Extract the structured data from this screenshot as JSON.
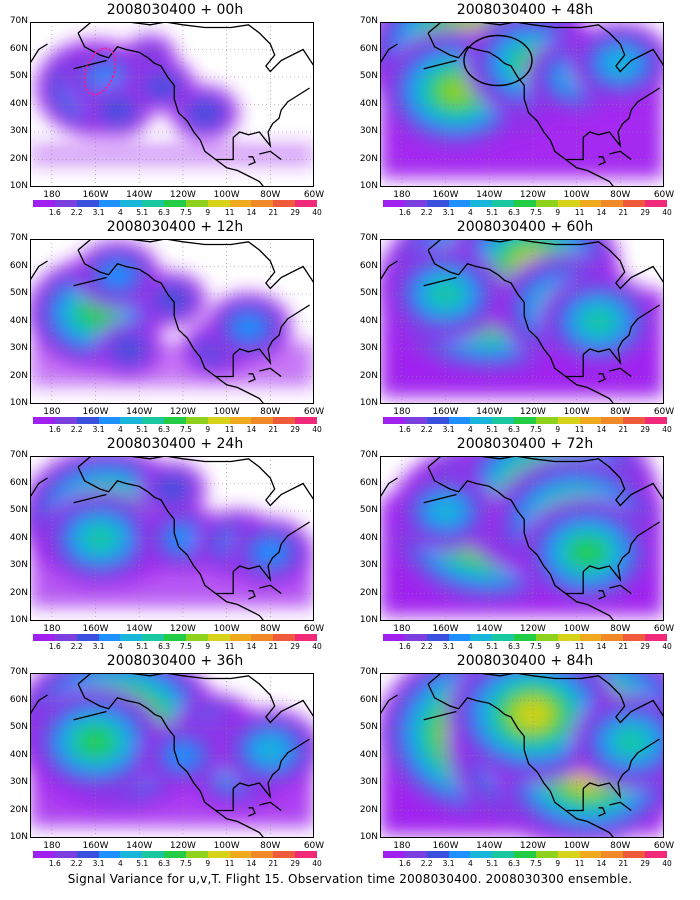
{
  "caption": "Signal Variance for u,v,T. Flight 15. Observation time 2008030400. 2008030300 ensemble.",
  "colorbar": {
    "levels": [
      "1.6",
      "2.2",
      "3.1",
      "4",
      "5.1",
      "6.3",
      "7.5",
      "9",
      "11",
      "14",
      "21",
      "29",
      "40"
    ],
    "colors": [
      "#a020f0",
      "#7b3fe0",
      "#3c50e0",
      "#1e90ff",
      "#18b6d8",
      "#19c8a0",
      "#22cc44",
      "#8fd21e",
      "#d7d21a",
      "#f0aa1e",
      "#f08a28",
      "#f05a3c",
      "#f02a78"
    ]
  },
  "axes": {
    "x_ticks": [
      "180",
      "160W",
      "140W",
      "120W",
      "100W",
      "80W",
      "60W"
    ],
    "y_ticks": [
      "70N",
      "60N",
      "50N",
      "40N",
      "30N",
      "20N",
      "10N"
    ],
    "lon_range": [
      -190,
      -60
    ],
    "lat_range": [
      10,
      70
    ],
    "grid": true
  },
  "chart_data": [
    {
      "type": "heatmap",
      "title": "2008030400 + 00h",
      "intensity": 0.15,
      "blobs": [
        [
          -160,
          46,
          5
        ],
        [
          -155,
          49,
          3
        ],
        [
          -130,
          47,
          2
        ],
        [
          -110,
          37,
          2
        ],
        [
          -150,
          38,
          2
        ],
        [
          -135,
          58,
          1
        ]
      ]
    },
    {
      "type": "heatmap",
      "title": "2008030400 + 12h",
      "intensity": 0.3,
      "blobs": [
        [
          -160,
          43,
          6
        ],
        [
          -150,
          57,
          3
        ],
        [
          -105,
          30,
          2
        ],
        [
          -90,
          38,
          3
        ],
        [
          -125,
          48,
          2
        ],
        [
          -145,
          30,
          2
        ]
      ]
    },
    {
      "type": "heatmap",
      "title": "2008030400 + 24h",
      "intensity": 0.45,
      "blobs": [
        [
          -155,
          48,
          8
        ],
        [
          -158,
          40,
          5
        ],
        [
          -120,
          40,
          3
        ],
        [
          -95,
          38,
          3
        ],
        [
          -80,
          35,
          3
        ],
        [
          -125,
          58,
          2
        ]
      ]
    },
    {
      "type": "heatmap",
      "title": "2008030400 + 36h",
      "intensity": 0.55,
      "blobs": [
        [
          -150,
          50,
          10
        ],
        [
          -160,
          45,
          6
        ],
        [
          -105,
          50,
          3
        ],
        [
          -95,
          38,
          5
        ],
        [
          -80,
          42,
          4
        ],
        [
          -120,
          40,
          3
        ]
      ]
    },
    {
      "type": "heatmap",
      "title": "2008030400 + 48h",
      "intensity": 0.65,
      "blobs": [
        [
          -145,
          58,
          11
        ],
        [
          -155,
          45,
          7
        ],
        [
          -120,
          55,
          6
        ],
        [
          -100,
          50,
          4
        ],
        [
          -80,
          55,
          4
        ]
      ],
      "annotation": "circle"
    },
    {
      "type": "heatmap",
      "title": "2008030400 + 60h",
      "intensity": 0.72,
      "blobs": [
        [
          -140,
          52,
          11
        ],
        [
          -120,
          60,
          8
        ],
        [
          -105,
          45,
          6
        ],
        [
          -90,
          40,
          5
        ],
        [
          -160,
          50,
          5
        ]
      ]
    },
    {
      "type": "heatmap",
      "title": "2008030400 + 72h",
      "intensity": 0.8,
      "blobs": [
        [
          -140,
          45,
          10
        ],
        [
          -110,
          55,
          10
        ],
        [
          -100,
          45,
          8
        ],
        [
          -95,
          35,
          6
        ],
        [
          -160,
          50,
          4
        ]
      ]
    },
    {
      "type": "heatmap",
      "title": "2008030400 + 84h",
      "intensity": 0.88,
      "blobs": [
        [
          -140,
          48,
          11
        ],
        [
          -100,
          45,
          13
        ],
        [
          -95,
          35,
          9
        ],
        [
          -120,
          55,
          8
        ],
        [
          -75,
          45,
          5
        ]
      ]
    }
  ]
}
